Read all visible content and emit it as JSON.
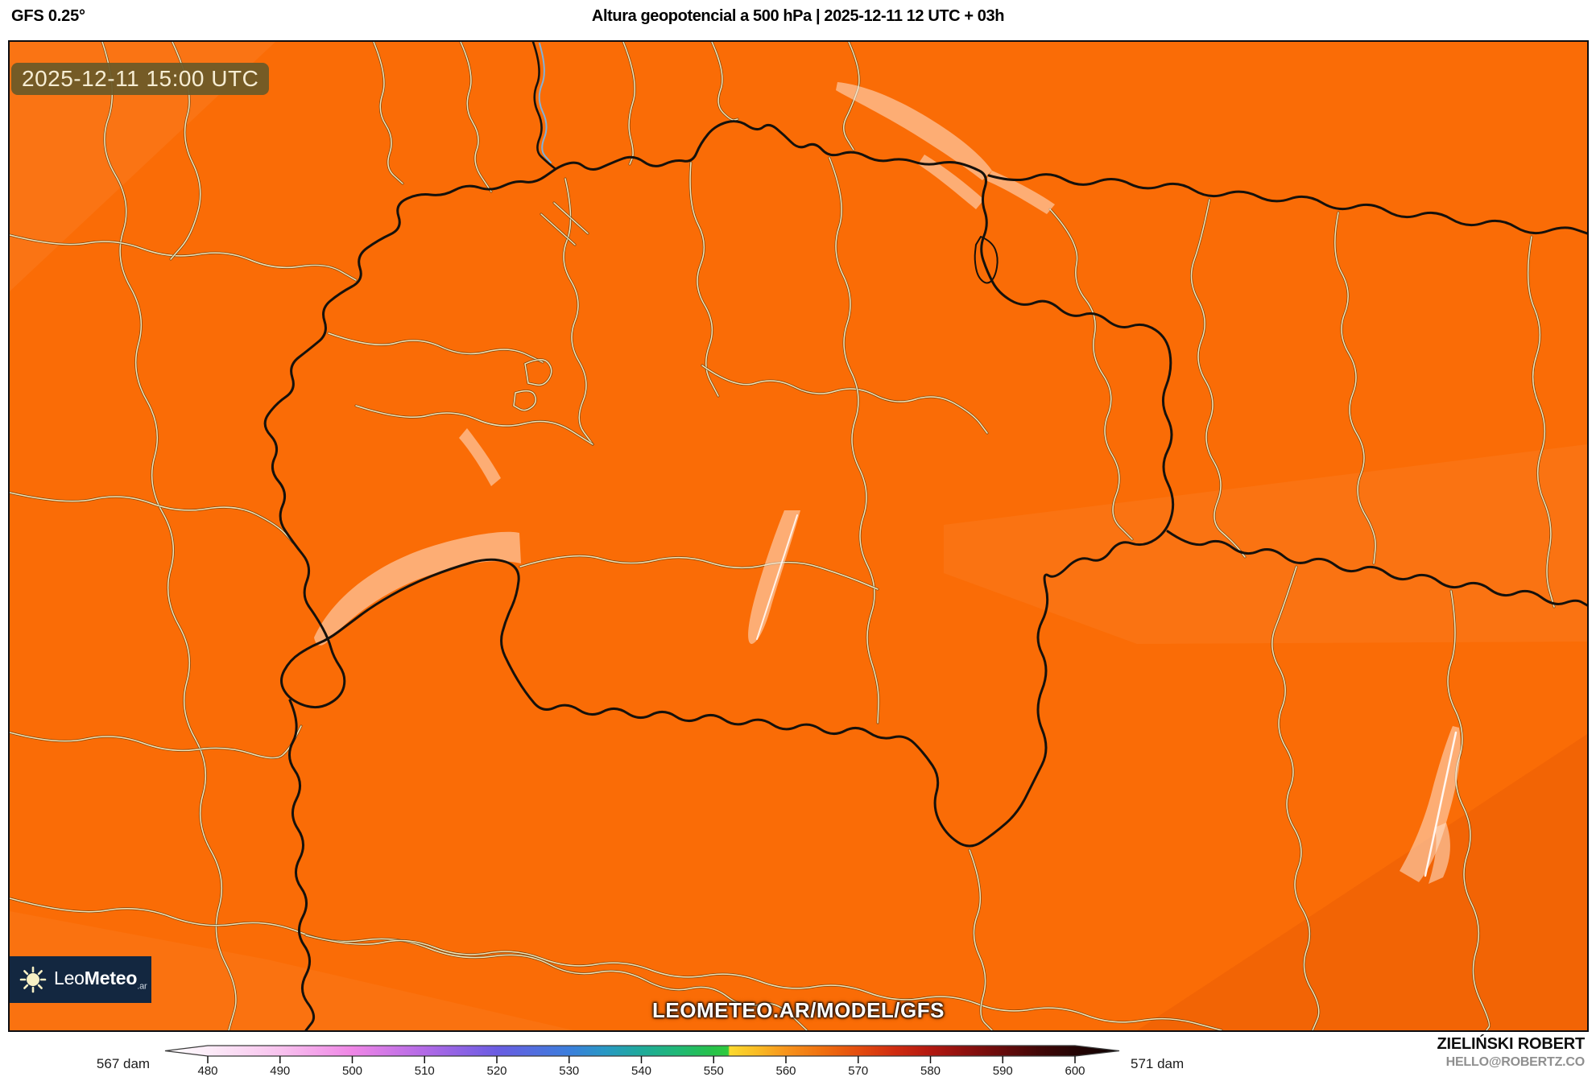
{
  "header": {
    "model": "GFS 0.25°",
    "title": "Altura geopotencial a 500 hPa | 2025-12-11 12 UTC + 03h"
  },
  "map": {
    "timestamp_badge": "2025-12-11 15:00 UTC",
    "watermark": "LEOMETEO.AR/MODEL/GFS",
    "colors": {
      "base_orange": "#fa6c06",
      "country_border": "#16110b",
      "region_border_core": "#f2e5b8",
      "region_border_casing": "#4a3510",
      "lake_fill": "#ffe3cf",
      "badge_bg": "#6a5928",
      "badge_text": "#f6edd3",
      "logo_bg": "#132740"
    }
  },
  "logo": {
    "brand_light": "Leo",
    "brand_bold": "Meteo",
    "suffix": ".ar"
  },
  "colorbar": {
    "min_label": "567 dam",
    "max_label": "571 dam",
    "unit": "dam",
    "range_min": 480,
    "range_max": 600,
    "ticks": [
      "480",
      "490",
      "500",
      "510",
      "520",
      "530",
      "540",
      "550",
      "560",
      "570",
      "580",
      "590",
      "600"
    ]
  },
  "credits": {
    "author": "ZIELIŃSKI ROBERT",
    "contact": "HELLO@ROBERTZ.CO"
  }
}
